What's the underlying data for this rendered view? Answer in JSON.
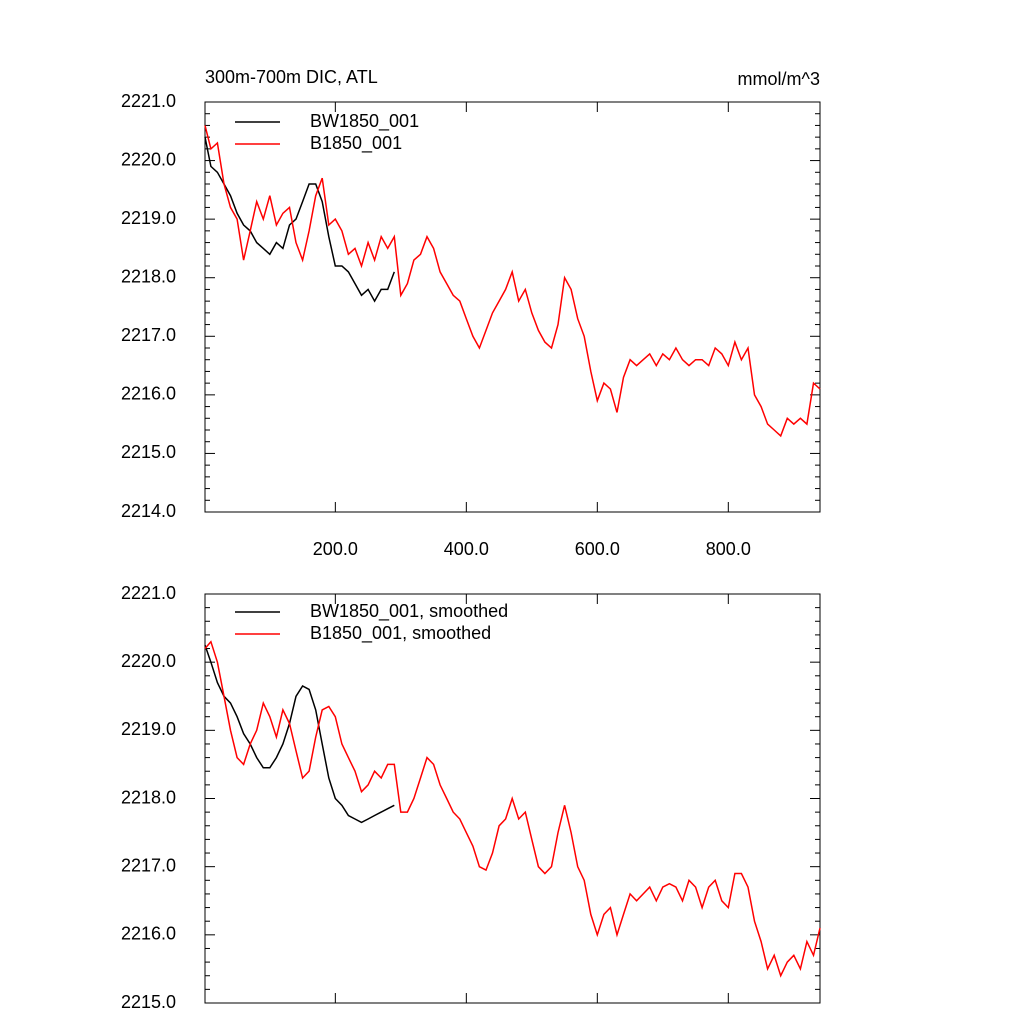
{
  "chart_data": [
    {
      "type": "line",
      "title": "300m-700m DIC, ATL",
      "units": "mmol/m^3",
      "x": [
        1,
        10,
        20,
        30,
        40,
        50,
        60,
        70,
        80,
        90,
        100,
        110,
        120,
        130,
        140,
        150,
        160,
        170,
        180,
        190,
        200,
        210,
        220,
        230,
        240,
        250,
        260,
        270,
        280,
        290,
        300,
        310,
        320,
        330,
        340,
        350,
        360,
        370,
        380,
        390,
        400,
        410,
        420,
        430,
        440,
        450,
        460,
        470,
        480,
        490,
        500,
        510,
        520,
        530,
        540,
        550,
        560,
        570,
        580,
        590,
        600,
        610,
        620,
        630,
        640,
        650,
        660,
        670,
        680,
        690,
        700,
        710,
        720,
        730,
        740,
        750,
        760,
        770,
        780,
        790,
        800,
        810,
        820,
        830,
        840,
        850,
        860,
        870,
        880,
        890,
        900,
        910,
        920,
        930,
        940
      ],
      "xlim": [
        1,
        940
      ],
      "xticks": [
        {
          "value": 200,
          "label": "200.0"
        },
        {
          "value": 400,
          "label": "400.0"
        },
        {
          "value": 600,
          "label": "600.0"
        },
        {
          "value": 800,
          "label": "800.0"
        }
      ],
      "ylim": [
        2214,
        2221
      ],
      "yticks": [
        {
          "value": 2214,
          "label": "2214.0"
        },
        {
          "value": 2215,
          "label": "2215.0"
        },
        {
          "value": 2216,
          "label": "2216.0"
        },
        {
          "value": 2217,
          "label": "2217.0"
        },
        {
          "value": 2218,
          "label": "2218.0"
        },
        {
          "value": 2219,
          "label": "2219.0"
        },
        {
          "value": 2220,
          "label": "2220.0"
        },
        {
          "value": 2221,
          "label": "2221.0"
        }
      ],
      "series": [
        {
          "name": "BW1850_001",
          "color": "#000000",
          "values": [
            2220.4,
            2219.9,
            2219.8,
            2219.6,
            2219.4,
            2219.1,
            2218.9,
            2218.8,
            2218.6,
            2218.5,
            2218.4,
            2218.6,
            2218.5,
            2218.9,
            2219.0,
            2219.3,
            2219.6,
            2219.6,
            2219.3,
            2218.7,
            2218.2,
            2218.2,
            2218.1,
            2217.9,
            2217.7,
            2217.8,
            2217.6,
            2217.8,
            2217.8,
            2218.1,
            null,
            null,
            null,
            null,
            null,
            null,
            null,
            null,
            null,
            null,
            null,
            null,
            null,
            null,
            null,
            null,
            null,
            null,
            null,
            null,
            null,
            null,
            null,
            null,
            null,
            null,
            null,
            null,
            null,
            null,
            null,
            null,
            null,
            null,
            null,
            null,
            null,
            null,
            null,
            null,
            null,
            null,
            null,
            null,
            null,
            null,
            null,
            null,
            null,
            null,
            null,
            null,
            null,
            null,
            null,
            null,
            null,
            null,
            null,
            null,
            null,
            null,
            null,
            null,
            null
          ]
        },
        {
          "name": "B1850_001",
          "color": "#ff0000",
          "values": [
            2220.6,
            2220.2,
            2220.3,
            2219.6,
            2219.2,
            2219.0,
            2218.3,
            2218.8,
            2219.3,
            2219.0,
            2219.4,
            2218.9,
            2219.1,
            2219.2,
            2218.6,
            2218.3,
            2218.8,
            2219.4,
            2219.7,
            2218.9,
            2219.0,
            2218.8,
            2218.4,
            2218.5,
            2218.2,
            2218.6,
            2218.3,
            2218.7,
            2218.5,
            2218.7,
            2217.7,
            2217.9,
            2218.3,
            2218.4,
            2218.7,
            2218.5,
            2218.1,
            2217.9,
            2217.7,
            2217.6,
            2217.3,
            2217.0,
            2216.8,
            2217.1,
            2217.4,
            2217.6,
            2217.8,
            2218.1,
            2217.6,
            2217.8,
            2217.4,
            2217.1,
            2216.9,
            2216.8,
            2217.2,
            2218.0,
            2217.8,
            2217.3,
            2217.0,
            2216.4,
            2215.9,
            2216.2,
            2216.1,
            2215.7,
            2216.3,
            2216.6,
            2216.5,
            2216.6,
            2216.7,
            2216.5,
            2216.7,
            2216.6,
            2216.8,
            2216.6,
            2216.5,
            2216.6,
            2216.6,
            2216.5,
            2216.8,
            2216.7,
            2216.5,
            2216.9,
            2216.6,
            2216.8,
            2216.0,
            2215.8,
            2215.5,
            2215.4,
            2215.3,
            2215.6,
            2215.5,
            2215.6,
            2215.5,
            2216.2,
            2216.1
          ]
        }
      ]
    },
    {
      "type": "line",
      "x": [
        1,
        10,
        20,
        30,
        40,
        50,
        60,
        70,
        80,
        90,
        100,
        110,
        120,
        130,
        140,
        150,
        160,
        170,
        180,
        190,
        200,
        210,
        220,
        230,
        240,
        250,
        260,
        270,
        280,
        290,
        300,
        310,
        320,
        330,
        340,
        350,
        360,
        370,
        380,
        390,
        400,
        410,
        420,
        430,
        440,
        450,
        460,
        470,
        480,
        490,
        500,
        510,
        520,
        530,
        540,
        550,
        560,
        570,
        580,
        590,
        600,
        610,
        620,
        630,
        640,
        650,
        660,
        670,
        680,
        690,
        700,
        710,
        720,
        730,
        740,
        750,
        760,
        770,
        780,
        790,
        800,
        810,
        820,
        830,
        840,
        850,
        860,
        870,
        880,
        890,
        900,
        910,
        920,
        930,
        940
      ],
      "xlim": [
        1,
        940
      ],
      "ylim": [
        2215,
        2221
      ],
      "yticks": [
        {
          "value": 2215,
          "label": "2215.0"
        },
        {
          "value": 2216,
          "label": "2216.0"
        },
        {
          "value": 2217,
          "label": "2217.0"
        },
        {
          "value": 2218,
          "label": "2218.0"
        },
        {
          "value": 2219,
          "label": "2219.0"
        },
        {
          "value": 2220,
          "label": "2220.0"
        },
        {
          "value": 2221,
          "label": "2221.0"
        }
      ],
      "series": [
        {
          "name": "BW1850_001, smoothed",
          "color": "#000000",
          "values": [
            2220.25,
            2220.0,
            2219.7,
            2219.5,
            2219.4,
            2219.2,
            2218.95,
            2218.8,
            2218.6,
            2218.45,
            2218.45,
            2218.6,
            2218.8,
            2219.1,
            2219.5,
            2219.65,
            2219.6,
            2219.3,
            2218.8,
            2218.3,
            2218.0,
            2217.9,
            2217.75,
            2217.7,
            2217.65,
            2217.7,
            2217.75,
            2217.8,
            2217.85,
            2217.9,
            null,
            null,
            null,
            null,
            null,
            null,
            null,
            null,
            null,
            null,
            null,
            null,
            null,
            null,
            null,
            null,
            null,
            null,
            null,
            null,
            null,
            null,
            null,
            null,
            null,
            null,
            null,
            null,
            null,
            null,
            null,
            null,
            null,
            null,
            null,
            null,
            null,
            null,
            null,
            null,
            null,
            null,
            null,
            null,
            null,
            null,
            null,
            null,
            null,
            null,
            null,
            null,
            null,
            null,
            null,
            null,
            null,
            null,
            null,
            null,
            null,
            null,
            null,
            null,
            null
          ]
        },
        {
          "name": "B1850_001, smoothed",
          "color": "#ff0000",
          "values": [
            2220.2,
            2220.3,
            2220.0,
            2219.5,
            2219.0,
            2218.6,
            2218.5,
            2218.8,
            2219.0,
            2219.4,
            2219.2,
            2218.9,
            2219.3,
            2219.1,
            2218.7,
            2218.3,
            2218.4,
            2218.9,
            2219.3,
            2219.35,
            2219.2,
            2218.8,
            2218.6,
            2218.4,
            2218.1,
            2218.2,
            2218.4,
            2218.3,
            2218.5,
            2218.5,
            2217.8,
            2217.8,
            2218.0,
            2218.3,
            2218.6,
            2218.5,
            2218.2,
            2218.0,
            2217.8,
            2217.7,
            2217.5,
            2217.3,
            2217.0,
            2216.95,
            2217.2,
            2217.6,
            2217.7,
            2218.0,
            2217.7,
            2217.8,
            2217.4,
            2217.0,
            2216.9,
            2217.0,
            2217.5,
            2217.9,
            2217.5,
            2217.0,
            2216.8,
            2216.3,
            2216.0,
            2216.3,
            2216.4,
            2216.0,
            2216.3,
            2216.6,
            2216.5,
            2216.6,
            2216.7,
            2216.5,
            2216.7,
            2216.75,
            2216.7,
            2216.5,
            2216.8,
            2216.7,
            2216.4,
            2216.7,
            2216.8,
            2216.5,
            2216.4,
            2216.9,
            2216.9,
            2216.7,
            2216.2,
            2215.9,
            2215.5,
            2215.7,
            2215.4,
            2215.6,
            2215.7,
            2215.5,
            2215.9,
            2215.7,
            2216.1
          ]
        }
      ]
    }
  ]
}
